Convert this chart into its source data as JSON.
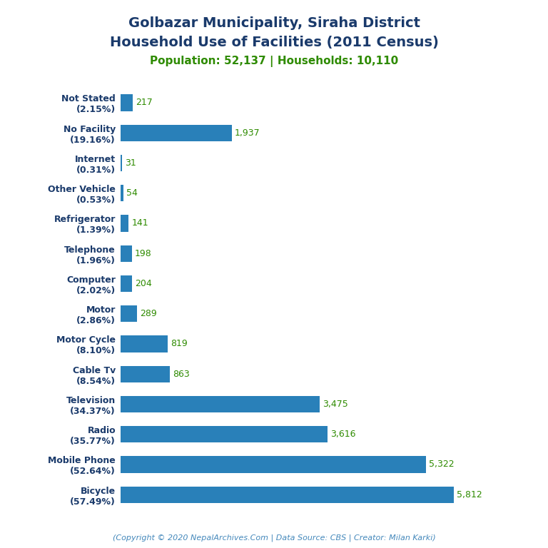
{
  "title_line1": "Golbazar Municipality, Siraha District",
  "title_line2": "Household Use of Facilities (2011 Census)",
  "subtitle": "Population: 52,137 | Households: 10,110",
  "footer": "(Copyright © 2020 NepalArchives.Com | Data Source: CBS | Creator: Milan Karki)",
  "title_color": "#1a3a6b",
  "subtitle_color": "#2e8b00",
  "footer_color": "#4488bb",
  "categories": [
    "Not Stated\n(2.15%)",
    "No Facility\n(19.16%)",
    "Internet\n(0.31%)",
    "Other Vehicle\n(0.53%)",
    "Refrigerator\n(1.39%)",
    "Telephone\n(1.96%)",
    "Computer\n(2.02%)",
    "Motor\n(2.86%)",
    "Motor Cycle\n(8.10%)",
    "Cable Tv\n(8.54%)",
    "Television\n(34.37%)",
    "Radio\n(35.77%)",
    "Mobile Phone\n(52.64%)",
    "Bicycle\n(57.49%)"
  ],
  "values": [
    217,
    1937,
    31,
    54,
    141,
    198,
    204,
    289,
    819,
    863,
    3475,
    3616,
    5322,
    5812
  ],
  "bar_color": "#2980b9",
  "value_color": "#2e8b00",
  "bar_height": 0.55,
  "xlim": [
    0,
    6500
  ],
  "figsize": [
    7.68,
    7.68
  ],
  "dpi": 100,
  "background_color": "#ffffff",
  "title_fontsize": 14,
  "subtitle_fontsize": 11,
  "label_fontsize": 9,
  "value_fontsize": 9,
  "footer_fontsize": 8
}
